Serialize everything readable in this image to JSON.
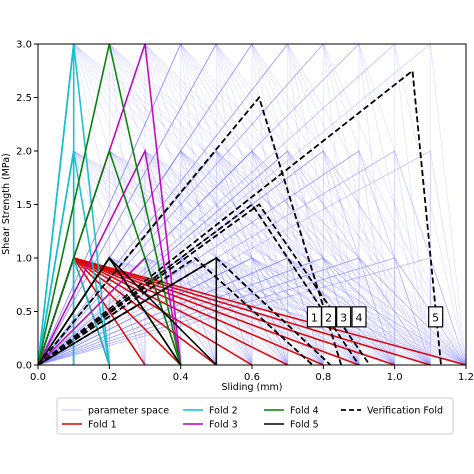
{
  "chart_data": {
    "type": "line",
    "xlabel": "Sliding (mm)",
    "ylabel": "Shear Strength (MPa)",
    "xlim": [
      0.0,
      1.2
    ],
    "ylim": [
      0.0,
      3.0
    ],
    "xticks": [
      "0.0",
      "0.2",
      "0.4",
      "0.6",
      "0.8",
      "1.0",
      "1.2"
    ],
    "yticks": [
      "0.0",
      "0.5",
      "1.0",
      "1.5",
      "2.0",
      "2.5",
      "3.0"
    ],
    "grid": false,
    "legend_placement": "below",
    "parameter_space": {
      "peak_sliding": [
        0.1,
        0.2,
        0.3,
        0.4,
        0.5,
        0.6,
        0.7,
        0.8,
        0.9,
        1.0,
        1.1
      ],
      "peak_strength": [
        1.0,
        2.0,
        3.0
      ],
      "residual_sliding": [
        0.1,
        0.2,
        0.3,
        0.4,
        0.5,
        0.6,
        0.7,
        0.8,
        0.9,
        1.0,
        1.1,
        1.2
      ]
    },
    "series": [
      {
        "name": "parameter space",
        "color": "#8a8aff",
        "style": "solid"
      },
      {
        "name": "Fold 1",
        "color": "#dd0000",
        "style": "solid",
        "peak_x": [
          0.1
        ],
        "peak_y": [
          1.0
        ],
        "end_x": [
          0.1,
          0.2,
          0.3,
          0.4,
          0.5,
          0.6,
          0.7,
          0.8,
          0.9,
          1.0,
          1.1,
          1.2
        ]
      },
      {
        "name": "Fold 2",
        "color": "#17becf",
        "style": "solid",
        "peak_x": [
          0.1
        ],
        "peak_y": [
          1.0,
          2.0,
          3.0
        ],
        "end_x": [
          0.1,
          0.2
        ]
      },
      {
        "name": "Fold 3",
        "color": "#c000c0",
        "style": "solid",
        "peak_x": [
          0.3
        ],
        "peak_y": [
          1.0,
          2.0,
          3.0
        ],
        "end_x": [
          0.2,
          0.4
        ]
      },
      {
        "name": "Fold 4",
        "color": "#008000",
        "style": "solid",
        "peak_x": [
          0.2
        ],
        "peak_y": [
          1.0,
          2.0,
          3.0
        ],
        "end_x": [
          0.4
        ]
      },
      {
        "name": "Fold 5",
        "color": "#000000",
        "style": "solid",
        "peak_x": [
          0.2,
          0.5
        ],
        "peak_y": [
          1.0
        ],
        "end_x": [
          0.4,
          0.5
        ]
      },
      {
        "name": "Verification Fold",
        "color": "#000000",
        "style": "dashed",
        "lines": [
          {
            "x": [
              0.0,
              0.62,
              0.85
            ],
            "y": [
              0.0,
              2.5,
              0.0
            ]
          },
          {
            "x": [
              0.0,
              1.05,
              1.13
            ],
            "y": [
              0.0,
              2.75,
              0.0
            ]
          },
          {
            "x": [
              0.0,
              0.44,
              0.77
            ],
            "y": [
              0.0,
              1.0,
              0.0
            ]
          },
          {
            "x": [
              0.0,
              0.5,
              0.82
            ],
            "y": [
              0.0,
              1.0,
              0.0
            ]
          },
          {
            "x": [
              0.0,
              0.6,
              0.9
            ],
            "y": [
              0.0,
              1.5,
              0.0
            ]
          },
          {
            "x": [
              0.0,
              0.62,
              0.93
            ],
            "y": [
              0.0,
              1.5,
              0.0
            ]
          }
        ]
      }
    ],
    "annotations": [
      {
        "text": "1",
        "x": 0.775,
        "y": 0.45
      },
      {
        "text": "2",
        "x": 0.815,
        "y": 0.45
      },
      {
        "text": "3",
        "x": 0.857,
        "y": 0.45
      },
      {
        "text": "4",
        "x": 0.9,
        "y": 0.45
      },
      {
        "text": "5",
        "x": 1.115,
        "y": 0.45
      }
    ]
  }
}
